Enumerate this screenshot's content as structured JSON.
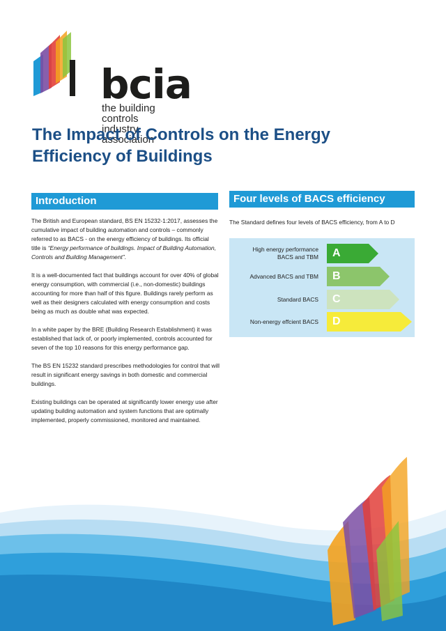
{
  "logo": {
    "wordmark": "bcia",
    "subtitle_line1": "the building controls",
    "subtitle_line2": "industry association"
  },
  "title": "The Impact of Controls on the Energy Efficiency of Buildings",
  "introduction": {
    "heading": "Introduction",
    "p1_start": "The British and European standard, BS EN 15232-1:2017, assesses the cumulative impact of building automation and controls – commonly referred to as BACS - on the energy efficiency of buildings. Its official title is",
    "p1_italic": "“Energy performance of buildings. Impact of Building Automation, Controls and Building Management”",
    "p1_end": ".",
    "p2": "It is a well-documented fact that buildings account for over 40% of global energy consumption, with commercial (i.e., non-domestic) buildings accounting for more than half of this figure. Buildings rarely perform as well as their designers calculated with energy consumption and costs being as much as double what was expected.",
    "p3": "In a white paper by the BRE (Building Research Establishment) it was established that lack of, or poorly implemented, controls accounted for seven of the top 10 reasons for this energy performance gap.",
    "p4": "The BS EN 15232 standard prescribes methodologies for control that will result in significant energy savings in both domestic and commercial buildings.",
    "p5": "Existing buildings can be operated at significantly lower energy use after updating building automation and system functions that are optimally implemented, properly commissioned, monitored and maintained."
  },
  "bacs": {
    "heading": "Four levels of BACS efficiency",
    "intro": "The Standard defines four levels of BACS efficiency, from A to D",
    "levels": [
      {
        "label_line1": "High energy performance",
        "label_line2": "BACS and TBM",
        "letter": "A",
        "color": "#3aaa35"
      },
      {
        "label_line1": "Advanced BACS and TBM",
        "label_line2": "",
        "letter": "B",
        "color": "#8cc56b"
      },
      {
        "label_line1": "Standard BACS",
        "label_line2": "",
        "letter": "C",
        "color": "#cde3be"
      },
      {
        "label_line1": "Non-energy effcient BACS",
        "label_line2": "",
        "letter": "D",
        "color": "#f6eb3a"
      }
    ]
  },
  "colors": {
    "title": "#1c4f86",
    "header_bg": "#1f9ad6",
    "scale_bg": "#c9e6f5"
  }
}
